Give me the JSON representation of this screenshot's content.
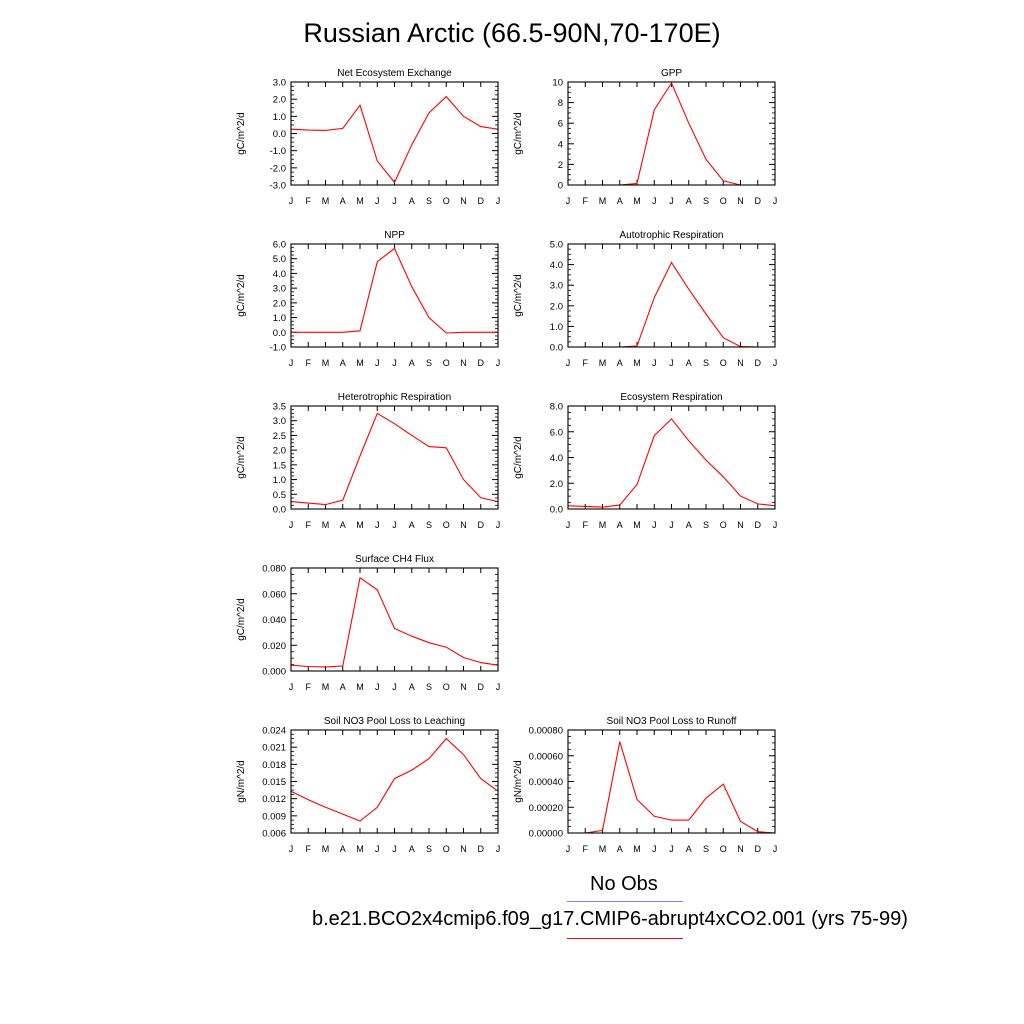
{
  "title": "Russian Arctic (66.5-90N,70-170E)",
  "legend": {
    "obs_label": "No Obs",
    "obs_color": "#8080ff",
    "model_label": "b.e21.BCO2x4cmip6.f09_g17.CMIP6-abrupt4xCO2.001 (yrs 75-99)",
    "model_color": "#ff0000"
  },
  "chart_data": [
    {
      "type": "line",
      "title": "Net Ecosystem Exchange",
      "ylabel": "gC/m^2/d",
      "x": [
        "J",
        "F",
        "M",
        "A",
        "M",
        "J",
        "J",
        "A",
        "S",
        "O",
        "N",
        "D",
        "J"
      ],
      "ylim": [
        -3.0,
        3.0
      ],
      "yticks": [
        "-3.0",
        "-2.0",
        "-1.0",
        "0.0",
        "1.0",
        "2.0",
        "3.0"
      ],
      "series": [
        {
          "values": [
            0.25,
            0.2,
            0.18,
            0.3,
            1.65,
            -1.6,
            -2.85,
            -0.65,
            1.2,
            2.15,
            1.0,
            0.4,
            0.25
          ],
          "color": "#ff0000"
        }
      ]
    },
    {
      "type": "line",
      "title": "GPP",
      "ylabel": "gC/m^2/d",
      "x": [
        "J",
        "F",
        "M",
        "A",
        "M",
        "J",
        "J",
        "A",
        "S",
        "O",
        "N",
        "D",
        "J"
      ],
      "ylim": [
        0,
        10
      ],
      "yticks": [
        "0",
        "2",
        "4",
        "6",
        "8",
        "10"
      ],
      "series": [
        {
          "values": [
            0.0,
            0.0,
            0.0,
            0.0,
            0.15,
            7.3,
            9.9,
            6.0,
            2.5,
            0.4,
            0.0,
            0.0,
            0.0
          ],
          "color": "#ff0000"
        }
      ]
    },
    {
      "type": "line",
      "title": "NPP",
      "ylabel": "gC/m^2/d",
      "x": [
        "J",
        "F",
        "M",
        "A",
        "M",
        "J",
        "J",
        "A",
        "S",
        "O",
        "N",
        "D",
        "J"
      ],
      "ylim": [
        -1.0,
        6.0
      ],
      "yticks": [
        "-1.0",
        "0.0",
        "1.0",
        "2.0",
        "3.0",
        "4.0",
        "5.0",
        "6.0"
      ],
      "series": [
        {
          "values": [
            0.0,
            0.0,
            0.0,
            0.0,
            0.1,
            4.8,
            5.7,
            3.1,
            1.0,
            -0.05,
            0.0,
            0.0,
            0.0
          ],
          "color": "#ff0000"
        }
      ]
    },
    {
      "type": "line",
      "title": "Autotrophic Respiration",
      "ylabel": "gC/m^2/d",
      "x": [
        "J",
        "F",
        "M",
        "A",
        "M",
        "J",
        "J",
        "A",
        "S",
        "O",
        "N",
        "D",
        "J"
      ],
      "ylim": [
        0,
        5.0
      ],
      "yticks": [
        "0.0",
        "1.0",
        "2.0",
        "3.0",
        "4.0",
        "5.0"
      ],
      "series": [
        {
          "values": [
            0.0,
            0.0,
            0.0,
            0.0,
            0.05,
            2.4,
            4.1,
            2.8,
            1.6,
            0.45,
            0.02,
            0.0,
            0.0
          ],
          "color": "#ff0000"
        }
      ]
    },
    {
      "type": "line",
      "title": "Heterotrophic Respiration",
      "ylabel": "gC/m^2/d",
      "x": [
        "J",
        "F",
        "M",
        "A",
        "M",
        "J",
        "J",
        "A",
        "S",
        "O",
        "N",
        "D",
        "J"
      ],
      "ylim": [
        0,
        3.5
      ],
      "yticks": [
        "0.0",
        "0.5",
        "1.0",
        "1.5",
        "2.0",
        "2.5",
        "3.0",
        "3.5"
      ],
      "series": [
        {
          "values": [
            0.25,
            0.2,
            0.15,
            0.3,
            1.8,
            3.25,
            2.9,
            2.5,
            2.12,
            2.08,
            1.0,
            0.38,
            0.25
          ],
          "color": "#ff0000"
        }
      ]
    },
    {
      "type": "line",
      "title": "Ecosystem Respiration",
      "ylabel": "gC/m^2/d",
      "x": [
        "J",
        "F",
        "M",
        "A",
        "M",
        "J",
        "J",
        "A",
        "S",
        "O",
        "N",
        "D",
        "J"
      ],
      "ylim": [
        0,
        8.0
      ],
      "yticks": [
        "0.0",
        "2.0",
        "4.0",
        "6.0",
        "8.0"
      ],
      "series": [
        {
          "values": [
            0.25,
            0.2,
            0.15,
            0.3,
            1.9,
            5.7,
            7.0,
            5.3,
            3.8,
            2.5,
            1.0,
            0.4,
            0.25
          ],
          "color": "#ff0000"
        }
      ]
    },
    {
      "type": "line",
      "title": "Surface CH4 Flux",
      "ylabel": "gC/m^2/d",
      "x": [
        "J",
        "F",
        "M",
        "A",
        "M",
        "J",
        "J",
        "A",
        "S",
        "O",
        "N",
        "D",
        "J"
      ],
      "ylim": [
        0,
        0.08
      ],
      "yticks": [
        "0.000",
        "0.020",
        "0.040",
        "0.060",
        "0.080"
      ],
      "series": [
        {
          "values": [
            0.0045,
            0.0035,
            0.003,
            0.004,
            0.0725,
            0.063,
            0.033,
            0.027,
            0.022,
            0.0185,
            0.0105,
            0.0065,
            0.0045
          ],
          "color": "#ff0000"
        }
      ]
    },
    {
      "type": "line",
      "title": "Soil NO3 Pool Loss to Leaching",
      "ylabel": "gN/m^2/d",
      "x": [
        "J",
        "F",
        "M",
        "A",
        "M",
        "J",
        "J",
        "A",
        "S",
        "O",
        "N",
        "D",
        "J"
      ],
      "ylim": [
        0.006,
        0.024
      ],
      "yticks": [
        "0.006",
        "0.009",
        "0.012",
        "0.015",
        "0.018",
        "0.021",
        "0.024"
      ],
      "series": [
        {
          "values": [
            0.0133,
            0.0118,
            0.0105,
            0.0093,
            0.0081,
            0.0105,
            0.0155,
            0.017,
            0.019,
            0.0225,
            0.0197,
            0.0155,
            0.0133
          ],
          "color": "#ff0000"
        }
      ]
    },
    {
      "type": "line",
      "title": "Soil NO3 Pool Loss to Runoff",
      "ylabel": "gN/m^2/d",
      "x": [
        "J",
        "F",
        "M",
        "A",
        "M",
        "J",
        "J",
        "A",
        "S",
        "O",
        "N",
        "D",
        "J"
      ],
      "ylim": [
        0,
        0.0008
      ],
      "yticks": [
        "0.00000",
        "0.00020",
        "0.00040",
        "0.00060",
        "0.00080"
      ],
      "series": [
        {
          "values": [
            0.0,
            0.0,
            2e-05,
            0.00071,
            0.00026,
            0.00013,
            0.0001,
            0.0001,
            0.00027,
            0.00038,
            9e-05,
            1e-05,
            0.0
          ],
          "color": "#ff0000"
        }
      ]
    }
  ]
}
